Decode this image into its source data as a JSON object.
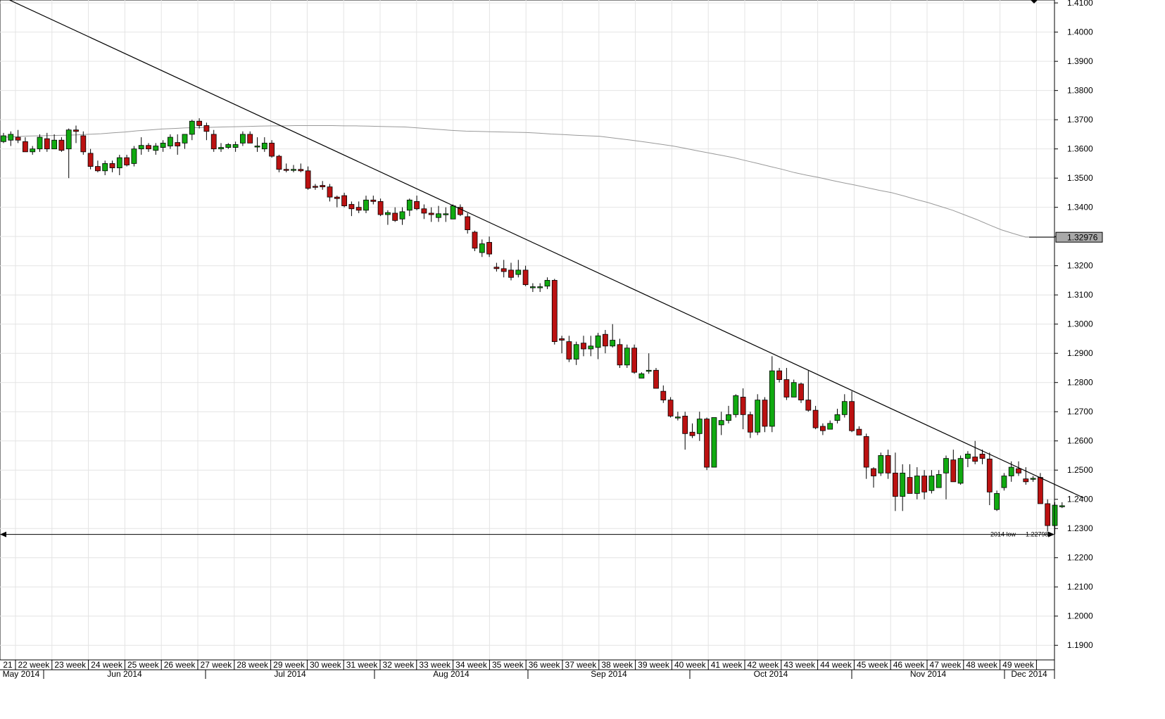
{
  "chart_data": {
    "type": "candlestick",
    "title": "",
    "xlabel": "",
    "ylabel": "",
    "ylim": [
      1.185,
      1.411
    ],
    "y_ticks": [
      "1.4100",
      "1.4000",
      "1.3900",
      "1.3800",
      "1.3700",
      "1.3600",
      "1.3500",
      "1.3400",
      "1.3300",
      "1.3200",
      "1.3100",
      "1.3000",
      "1.2900",
      "1.2800",
      "1.2700",
      "1.2600",
      "1.2500",
      "1.2400",
      "1.2300",
      "1.2200",
      "1.2100",
      "1.2000",
      "1.1900"
    ],
    "week_labels": [
      "21",
      "22 week",
      "23 week",
      "24 week",
      "25 week",
      "26 week",
      "27 week",
      "28 week",
      "29 week",
      "30 week",
      "31 week",
      "32 week",
      "33 week",
      "34 week",
      "35 week",
      "36 week",
      "37 week",
      "38 week",
      "39 week",
      "40 week",
      "41 week",
      "42 week",
      "43 week",
      "44 week",
      "45 week",
      "46 week",
      "47 week",
      "48 week",
      "49 week"
    ],
    "month_labels": [
      "May 2014",
      "Jun 2014",
      "Jul 2014",
      "Aug 2014",
      "Sep 2014",
      "Oct 2014",
      "Nov 2014",
      "Dec 2014"
    ],
    "candles_ohlc": [
      [
        1.3625,
        1.3655,
        1.362,
        1.3645
      ],
      [
        1.363,
        1.366,
        1.361,
        1.365
      ],
      [
        1.364,
        1.3665,
        1.362,
        1.363
      ],
      [
        1.3625,
        1.364,
        1.359,
        1.359
      ],
      [
        1.359,
        1.361,
        1.358,
        1.36
      ],
      [
        1.36,
        1.365,
        1.359,
        1.364
      ],
      [
        1.3635,
        1.3655,
        1.359,
        1.36
      ],
      [
        1.36,
        1.365,
        1.36,
        1.363
      ],
      [
        1.363,
        1.364,
        1.359,
        1.3595
      ],
      [
        1.36,
        1.367,
        1.35,
        1.3665
      ],
      [
        1.3665,
        1.368,
        1.362,
        1.366
      ],
      [
        1.3645,
        1.366,
        1.358,
        1.359
      ],
      [
        1.3585,
        1.36,
        1.353,
        1.354
      ],
      [
        1.354,
        1.356,
        1.352,
        1.3525
      ],
      [
        1.3525,
        1.356,
        1.351,
        1.355
      ],
      [
        1.355,
        1.356,
        1.352,
        1.3535
      ],
      [
        1.3535,
        1.358,
        1.351,
        1.357
      ],
      [
        1.357,
        1.358,
        1.354,
        1.3545
      ],
      [
        1.355,
        1.361,
        1.354,
        1.36
      ],
      [
        1.36,
        1.364,
        1.358,
        1.3612
      ],
      [
        1.3612,
        1.362,
        1.359,
        1.36
      ],
      [
        1.3595,
        1.362,
        1.358,
        1.361
      ],
      [
        1.3605,
        1.363,
        1.359,
        1.362
      ],
      [
        1.361,
        1.365,
        1.36,
        1.364
      ],
      [
        1.3622,
        1.365,
        1.358,
        1.361
      ],
      [
        1.362,
        1.365,
        1.36,
        1.365
      ],
      [
        1.365,
        1.37,
        1.363,
        1.3695
      ],
      [
        1.3695,
        1.3705,
        1.367,
        1.368
      ],
      [
        1.368,
        1.369,
        1.363,
        1.366
      ],
      [
        1.365,
        1.3665,
        1.359,
        1.36
      ],
      [
        1.36,
        1.362,
        1.359,
        1.3605
      ],
      [
        1.3605,
        1.362,
        1.36,
        1.3615
      ],
      [
        1.3605,
        1.3625,
        1.359,
        1.3615
      ],
      [
        1.362,
        1.366,
        1.361,
        1.365
      ],
      [
        1.365,
        1.366,
        1.362,
        1.362
      ],
      [
        1.361,
        1.364,
        1.359,
        1.361
      ],
      [
        1.36,
        1.364,
        1.359,
        1.362
      ],
      [
        1.362,
        1.363,
        1.357,
        1.3575
      ],
      [
        1.3575,
        1.358,
        1.352,
        1.353
      ],
      [
        1.353,
        1.355,
        1.352,
        1.3528
      ],
      [
        1.3528,
        1.3545,
        1.352,
        1.353
      ],
      [
        1.353,
        1.355,
        1.352,
        1.3525
      ],
      [
        1.3525,
        1.354,
        1.346,
        1.3465
      ],
      [
        1.3472,
        1.348,
        1.346,
        1.347
      ],
      [
        1.3475,
        1.349,
        1.346,
        1.347
      ],
      [
        1.347,
        1.348,
        1.342,
        1.3435
      ],
      [
        1.3435,
        1.344,
        1.34,
        1.343
      ],
      [
        1.344,
        1.345,
        1.34,
        1.3405
      ],
      [
        1.341,
        1.342,
        1.337,
        1.3395
      ],
      [
        1.34,
        1.342,
        1.338,
        1.339
      ],
      [
        1.339,
        1.344,
        1.338,
        1.3425
      ],
      [
        1.3425,
        1.344,
        1.341,
        1.342
      ],
      [
        1.342,
        1.343,
        1.337,
        1.3375
      ],
      [
        1.3375,
        1.339,
        1.334,
        1.3382
      ],
      [
        1.338,
        1.34,
        1.335,
        1.3355
      ],
      [
        1.336,
        1.34,
        1.334,
        1.3385
      ],
      [
        1.339,
        1.343,
        1.337,
        1.3425
      ],
      [
        1.342,
        1.344,
        1.339,
        1.3395
      ],
      [
        1.3395,
        1.341,
        1.336,
        1.338
      ],
      [
        1.338,
        1.34,
        1.335,
        1.3375
      ],
      [
        1.3365,
        1.3405,
        1.335,
        1.3378
      ],
      [
        1.3375,
        1.34,
        1.335,
        1.3378
      ],
      [
        1.336,
        1.341,
        1.336,
        1.3405
      ],
      [
        1.34,
        1.341,
        1.337,
        1.3375
      ],
      [
        1.3368,
        1.338,
        1.331,
        1.3323
      ],
      [
        1.3315,
        1.332,
        1.325,
        1.326
      ],
      [
        1.3245,
        1.329,
        1.323,
        1.3275
      ],
      [
        1.328,
        1.33,
        1.323,
        1.324
      ],
      [
        1.3195,
        1.321,
        1.318,
        1.319
      ],
      [
        1.319,
        1.322,
        1.316,
        1.318
      ],
      [
        1.3185,
        1.321,
        1.315,
        1.316
      ],
      [
        1.317,
        1.322,
        1.316,
        1.3185
      ],
      [
        1.3185,
        1.32,
        1.313,
        1.3135
      ],
      [
        1.3125,
        1.314,
        1.311,
        1.3128
      ],
      [
        1.3125,
        1.314,
        1.311,
        1.3128
      ],
      [
        1.313,
        1.316,
        1.312,
        1.315
      ],
      [
        1.315,
        1.3155,
        1.293,
        1.294
      ],
      [
        1.295,
        1.296,
        1.29,
        1.2945
      ],
      [
        1.294,
        1.296,
        1.287,
        1.288
      ],
      [
        1.288,
        1.294,
        1.286,
        1.293
      ],
      [
        1.2935,
        1.296,
        1.289,
        1.2915
      ],
      [
        1.2915,
        1.296,
        1.289,
        1.2925
      ],
      [
        1.292,
        1.297,
        1.288,
        1.296
      ],
      [
        1.2965,
        1.298,
        1.29,
        1.2925
      ],
      [
        1.2925,
        1.3,
        1.292,
        1.2945
      ],
      [
        1.293,
        1.295,
        1.285,
        1.286
      ],
      [
        1.286,
        1.293,
        1.285,
        1.2918
      ],
      [
        1.2918,
        1.293,
        1.283,
        1.2835
      ],
      [
        1.2815,
        1.2835,
        1.282,
        1.283
      ],
      [
        1.284,
        1.29,
        1.283,
        1.2842
      ],
      [
        1.2842,
        1.285,
        1.278,
        1.278
      ],
      [
        1.277,
        1.279,
        1.273,
        1.274
      ],
      [
        1.274,
        1.275,
        1.268,
        1.2685
      ],
      [
        1.268,
        1.27,
        1.267,
        1.2682
      ],
      [
        1.2685,
        1.27,
        1.257,
        1.2625
      ],
      [
        1.263,
        1.266,
        1.261,
        1.2618
      ],
      [
        1.2625,
        1.27,
        1.26,
        1.2675
      ],
      [
        1.2675,
        1.268,
        1.25,
        1.251
      ],
      [
        1.251,
        1.268,
        1.251,
        1.268
      ],
      [
        1.2655,
        1.27,
        1.262,
        1.267
      ],
      [
        1.267,
        1.272,
        1.266,
        1.269
      ],
      [
        1.269,
        1.276,
        1.268,
        1.2755
      ],
      [
        1.275,
        1.278,
        1.264,
        1.269
      ],
      [
        1.269,
        1.27,
        1.261,
        1.263
      ],
      [
        1.263,
        1.276,
        1.262,
        1.274
      ],
      [
        1.274,
        1.275,
        1.263,
        1.265
      ],
      [
        1.265,
        1.289,
        1.263,
        1.284
      ],
      [
        1.284,
        1.285,
        1.28,
        1.281
      ],
      [
        1.281,
        1.285,
        1.274,
        1.275
      ],
      [
        1.275,
        1.281,
        1.275,
        1.28
      ],
      [
        1.2795,
        1.28,
        1.273,
        1.274
      ],
      [
        1.274,
        1.284,
        1.27,
        1.2705
      ],
      [
        1.2705,
        1.272,
        1.264,
        1.2645
      ],
      [
        1.265,
        1.266,
        1.262,
        1.2635
      ],
      [
        1.264,
        1.267,
        1.264,
        1.266
      ],
      [
        1.267,
        1.271,
        1.266,
        1.269
      ],
      [
        1.269,
        1.276,
        1.268,
        1.2735
      ],
      [
        1.2735,
        1.277,
        1.263,
        1.2635
      ],
      [
        1.264,
        1.265,
        1.262,
        1.262
      ],
      [
        1.2615,
        1.2625,
        1.247,
        1.251
      ],
      [
        1.2505,
        1.251,
        1.244,
        1.248
      ],
      [
        1.249,
        1.256,
        1.248,
        1.255
      ],
      [
        1.255,
        1.257,
        1.247,
        1.249
      ],
      [
        1.249,
        1.256,
        1.236,
        1.241
      ],
      [
        1.241,
        1.252,
        1.236,
        1.249
      ],
      [
        1.2475,
        1.252,
        1.242,
        1.242
      ],
      [
        1.242,
        1.251,
        1.24,
        1.248
      ],
      [
        1.248,
        1.25,
        1.24,
        1.2425
      ],
      [
        1.243,
        1.25,
        1.242,
        1.248
      ],
      [
        1.244,
        1.25,
        1.244,
        1.2485
      ],
      [
        1.249,
        1.255,
        1.24,
        1.254
      ],
      [
        1.2535,
        1.257,
        1.246,
        1.246
      ],
      [
        1.2455,
        1.255,
        1.245,
        1.254
      ],
      [
        1.254,
        1.2565,
        1.251,
        1.2555
      ],
      [
        1.2545,
        1.26,
        1.252,
        1.253
      ],
      [
        1.2555,
        1.257,
        1.252,
        1.254
      ],
      [
        1.2538,
        1.256,
        1.238,
        1.2425
      ],
      [
        1.2365,
        1.243,
        1.236,
        1.242
      ],
      [
        1.244,
        1.249,
        1.243,
        1.248
      ],
      [
        1.248,
        1.253,
        1.246,
        1.251
      ],
      [
        1.2505,
        1.253,
        1.248,
        1.249
      ],
      [
        1.247,
        1.251,
        1.245,
        1.246
      ],
      [
        1.247,
        1.248,
        1.246,
        1.2472
      ],
      [
        1.2475,
        1.249,
        1.242,
        1.2385
      ],
      [
        1.2385,
        1.24,
        1.229,
        1.231
      ],
      [
        1.231,
        1.239,
        1.228,
        1.238
      ],
      [
        1.2378,
        1.239,
        1.237,
        1.2378
      ]
    ],
    "series": [
      {
        "type": "sma",
        "values": [
          1.364,
          1.3642,
          1.3644,
          1.3645,
          1.3646,
          1.3647,
          1.3648,
          1.365,
          1.3652,
          1.3655,
          1.3658,
          1.3662,
          1.3665,
          1.3668,
          1.367,
          1.3672,
          1.3673,
          1.3674,
          1.3675,
          1.3676,
          1.3677,
          1.3678,
          1.3679,
          1.3679,
          1.368,
          1.368,
          1.368,
          1.368,
          1.3679,
          1.3679,
          1.3678,
          1.3677,
          1.3676,
          1.3675,
          1.3672,
          1.3669,
          1.3666,
          1.3663,
          1.3661,
          1.366,
          1.3659,
          1.3658,
          1.3657,
          1.3656,
          1.3654,
          1.3651,
          1.3649,
          1.3647,
          1.3645,
          1.3643,
          1.3638,
          1.3633,
          1.3628,
          1.3622,
          1.3616,
          1.361,
          1.3602,
          1.3594,
          1.3586,
          1.3578,
          1.357,
          1.356,
          1.355,
          1.354,
          1.353,
          1.3519,
          1.351,
          1.3502,
          1.3493,
          1.3484,
          1.3476,
          1.3467,
          1.3458,
          1.345,
          1.3439,
          1.3427,
          1.3416,
          1.3403,
          1.339,
          1.3374,
          1.3358,
          1.334,
          1.3323,
          1.331,
          1.3298,
          1.3298,
          1.3298,
          1.3298
        ]
      },
      {
        "type": "trendline",
        "points": [
          [
            0,
            1.4125
          ],
          [
            148,
            1.2405
          ]
        ]
      }
    ],
    "last_price_label": "1.32976",
    "last_price_value": 1.32976,
    "low_line_value": 1.22798,
    "annotation_left": "2014 low",
    "annotation_right": "1.22798",
    "colors": {
      "up": "#11aa11",
      "down": "#bb1111",
      "grid": "#e4e4e4",
      "line": "#000000",
      "ma": "#999999"
    }
  }
}
